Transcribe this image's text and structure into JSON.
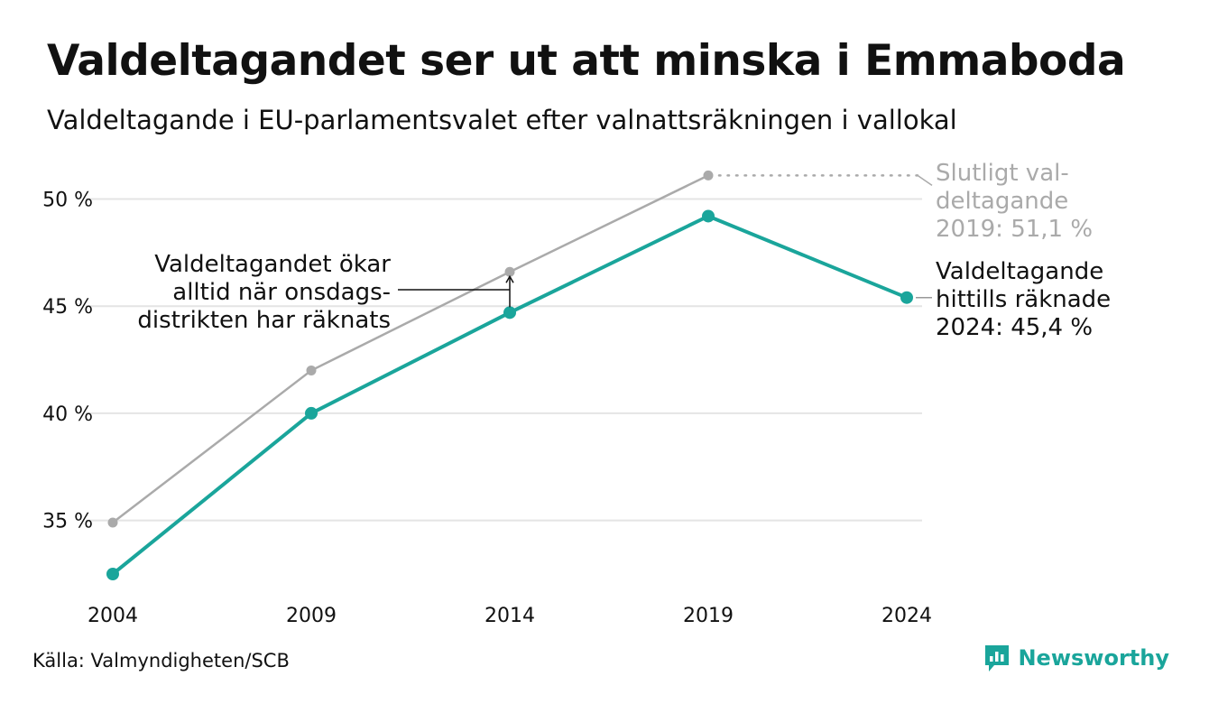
{
  "title": "Valdeltagandet ser ut att minska i Emmaboda",
  "subtitle": "Valdeltagande i EU-parlamentsvalet efter valnattsräkningen i vallokal",
  "source": "Källa: Valmyndigheten/SCB",
  "brand": "Newsworthy",
  "colors": {
    "main": "#1aa59b",
    "final": "#aaaaaa",
    "grid": "#e4e4e4",
    "text": "#111111"
  },
  "chart_data": {
    "type": "line",
    "x": [
      2004,
      2009,
      2014,
      2019,
      2024
    ],
    "xticks": [
      "2004",
      "2009",
      "2014",
      "2019",
      "2024"
    ],
    "ylim": [
      32.5,
      51.2
    ],
    "yticks": [
      35,
      40,
      45,
      50
    ],
    "ytick_labels": [
      "35 %",
      "40 %",
      "45 %",
      "50 %"
    ],
    "grid": true,
    "series": [
      {
        "values": [
          34.9,
          42.0,
          46.6,
          51.1,
          null
        ]
      },
      {
        "values": [
          32.5,
          40.0,
          44.7,
          49.2,
          45.4
        ]
      }
    ],
    "annotations": {
      "final_2019": [
        "Slutligt val-",
        "deltagande",
        "2019: 51,1 %"
      ],
      "current_2024": [
        "Valdeltagande",
        "hittills räknade",
        "2024: 45,4 %"
      ],
      "note": [
        "Valdeltagandet ökar",
        "alltid när onsdags-",
        "distrikten har räknats"
      ]
    }
  }
}
